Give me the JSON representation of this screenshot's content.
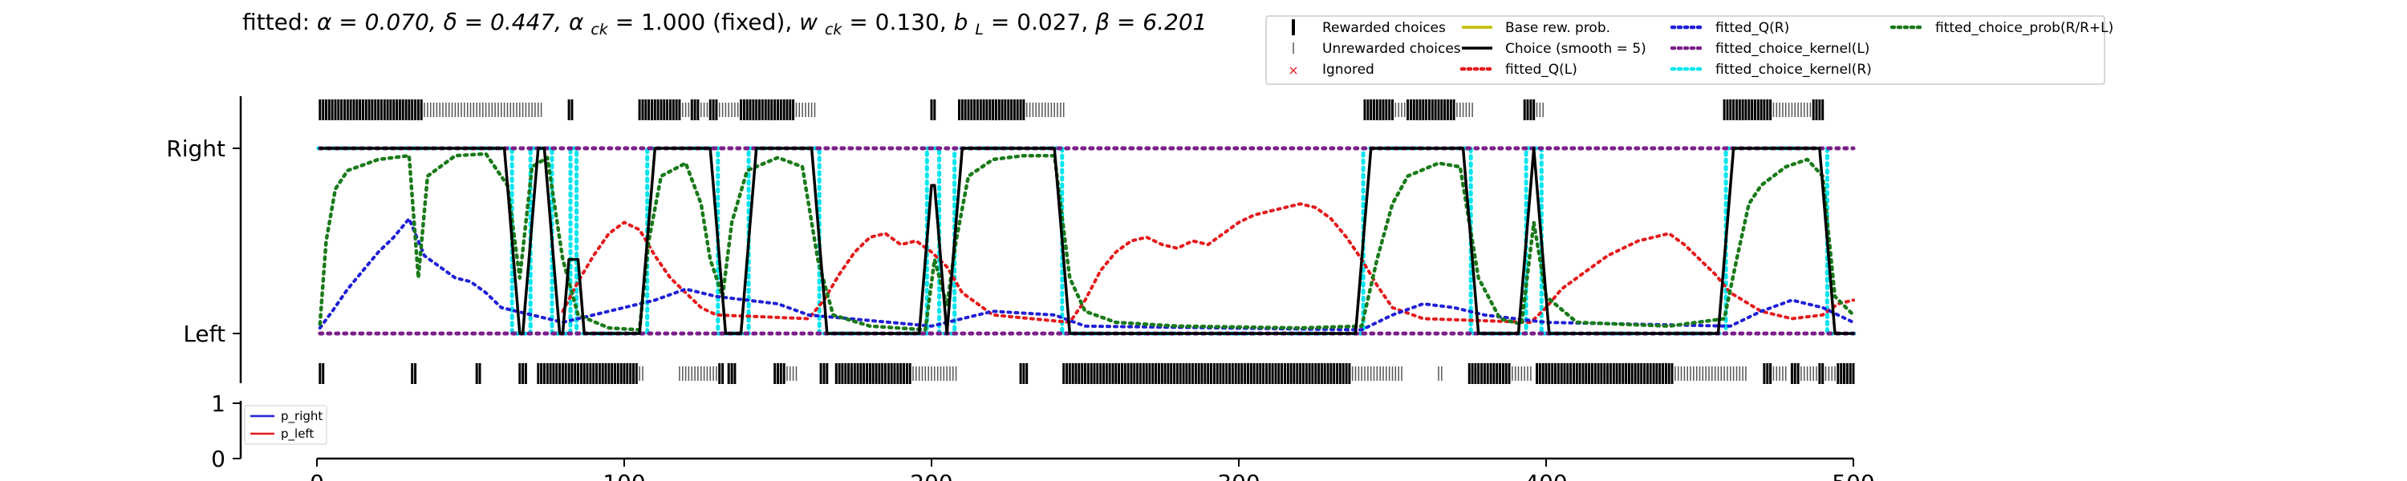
{
  "chart_data": [
    {
      "type": "line",
      "title_parts": {
        "prefix": "fitted: ",
        "alpha": "α = 0.070, ",
        "delta": "δ = 0.447, ",
        "alpha_ck_sym": "α",
        "alpha_ck_sub": "ck",
        "alpha_ck_val": " = 1.000 (fixed), ",
        "w_ck_sym": "w",
        "w_ck_sub": "ck",
        "w_ck_val": " = 0.130, ",
        "b_l_sym": "b",
        "b_l_sub": "L",
        "b_l_val": " = 0.027, ",
        "beta": "β = 6.201"
      },
      "yticks": [
        "Left",
        "Right"
      ],
      "xlim": [
        0,
        500
      ],
      "legend": {
        "placement": "top-right",
        "entries": [
          {
            "label": "Rewarded choices",
            "style": "rewarded",
            "color": "#000000"
          },
          {
            "label": "Unrewarded choices",
            "style": "unrewarded",
            "color": "#555555"
          },
          {
            "label": "Ignored",
            "style": "ignored",
            "color": "#e41a1c"
          },
          {
            "label": "Base rew. prob.",
            "style": "solid",
            "color": "#bfbf00"
          },
          {
            "label": "Choice (smooth = 5)",
            "style": "solid",
            "color": "#000000"
          },
          {
            "label": "fitted_Q(L)",
            "style": "dotted",
            "color": "#e41a1c"
          },
          {
            "label": "fitted_Q(R)",
            "style": "dotted",
            "color": "#1f1fd6"
          },
          {
            "label": "fitted_choice_kernel(L)",
            "style": "dotted",
            "color": "#7b1f8a"
          },
          {
            "label": "fitted_choice_kernel(R)",
            "style": "dotted",
            "color": "#00e5ee"
          },
          {
            "label": "fitted_choice_prob(R/R+L)",
            "style": "dotted",
            "color": "#1a7a1a"
          }
        ]
      },
      "choice_segments": [
        {
          "start": 1,
          "end": 34,
          "side": "R"
        },
        {
          "start": 35,
          "end": 54,
          "side": "R"
        },
        {
          "start": 55,
          "end": 63,
          "side": "R"
        },
        {
          "start": 64,
          "end": 69,
          "side": "L"
        },
        {
          "start": 70,
          "end": 76,
          "side": "R"
        },
        {
          "start": 77,
          "end": 82,
          "side": "L"
        },
        {
          "start": 83,
          "end": 84,
          "side": "R"
        },
        {
          "start": 85,
          "end": 107,
          "side": "L"
        },
        {
          "start": 108,
          "end": 130,
          "side": "R"
        },
        {
          "start": 131,
          "end": 140,
          "side": "L"
        },
        {
          "start": 141,
          "end": 163,
          "side": "R"
        },
        {
          "start": 164,
          "end": 198,
          "side": "L"
        },
        {
          "start": 199,
          "end": 202,
          "side": "R"
        },
        {
          "start": 203,
          "end": 207,
          "side": "L"
        },
        {
          "start": 208,
          "end": 242,
          "side": "R"
        },
        {
          "start": 243,
          "end": 340,
          "side": "L"
        },
        {
          "start": 341,
          "end": 375,
          "side": "R"
        },
        {
          "start": 376,
          "end": 393,
          "side": "L"
        },
        {
          "start": 394,
          "end": 398,
          "side": "R"
        },
        {
          "start": 399,
          "end": 458,
          "side": "L"
        },
        {
          "start": 459,
          "end": 491,
          "side": "R"
        },
        {
          "start": 492,
          "end": 500,
          "side": "L"
        }
      ],
      "q_left_points": [
        [
          80,
          0.12
        ],
        [
          85,
          0.28
        ],
        [
          90,
          0.42
        ],
        [
          95,
          0.54
        ],
        [
          100,
          0.6
        ],
        [
          105,
          0.56
        ],
        [
          110,
          0.42
        ],
        [
          115,
          0.3
        ],
        [
          120,
          0.22
        ],
        [
          125,
          0.14
        ],
        [
          130,
          0.1
        ],
        [
          160,
          0.08
        ],
        [
          165,
          0.18
        ],
        [
          170,
          0.32
        ],
        [
          175,
          0.44
        ],
        [
          180,
          0.52
        ],
        [
          185,
          0.54
        ],
        [
          190,
          0.48
        ],
        [
          195,
          0.5
        ],
        [
          200,
          0.44
        ],
        [
          205,
          0.36
        ],
        [
          210,
          0.22
        ],
        [
          220,
          0.1
        ],
        [
          245,
          0.06
        ],
        [
          250,
          0.18
        ],
        [
          255,
          0.34
        ],
        [
          260,
          0.44
        ],
        [
          265,
          0.5
        ],
        [
          270,
          0.52
        ],
        [
          275,
          0.48
        ],
        [
          280,
          0.46
        ],
        [
          285,
          0.5
        ],
        [
          290,
          0.48
        ],
        [
          295,
          0.54
        ],
        [
          300,
          0.6
        ],
        [
          305,
          0.64
        ],
        [
          310,
          0.66
        ],
        [
          315,
          0.68
        ],
        [
          320,
          0.7
        ],
        [
          325,
          0.68
        ],
        [
          330,
          0.62
        ],
        [
          335,
          0.52
        ],
        [
          340,
          0.4
        ],
        [
          345,
          0.26
        ],
        [
          350,
          0.14
        ],
        [
          360,
          0.08
        ],
        [
          395,
          0.06
        ],
        [
          400,
          0.14
        ],
        [
          405,
          0.24
        ],
        [
          410,
          0.3
        ],
        [
          415,
          0.36
        ],
        [
          420,
          0.42
        ],
        [
          425,
          0.46
        ],
        [
          430,
          0.5
        ],
        [
          435,
          0.52
        ],
        [
          440,
          0.54
        ],
        [
          445,
          0.48
        ],
        [
          450,
          0.4
        ],
        [
          455,
          0.32
        ],
        [
          460,
          0.22
        ],
        [
          470,
          0.12
        ],
        [
          480,
          0.08
        ],
        [
          490,
          0.1
        ],
        [
          495,
          0.16
        ],
        [
          500,
          0.18
        ]
      ],
      "q_right_points": [
        [
          1,
          0.03
        ],
        [
          5,
          0.12
        ],
        [
          10,
          0.24
        ],
        [
          15,
          0.34
        ],
        [
          20,
          0.44
        ],
        [
          25,
          0.52
        ],
        [
          30,
          0.62
        ],
        [
          35,
          0.42
        ],
        [
          40,
          0.36
        ],
        [
          45,
          0.3
        ],
        [
          50,
          0.28
        ],
        [
          55,
          0.22
        ],
        [
          60,
          0.14
        ],
        [
          70,
          0.1
        ],
        [
          80,
          0.06
        ],
        [
          110,
          0.18
        ],
        [
          120,
          0.24
        ],
        [
          130,
          0.2
        ],
        [
          140,
          0.18
        ],
        [
          150,
          0.16
        ],
        [
          160,
          0.1
        ],
        [
          200,
          0.04
        ],
        [
          210,
          0.08
        ],
        [
          220,
          0.12
        ],
        [
          240,
          0.1
        ],
        [
          250,
          0.04
        ],
        [
          340,
          0.02
        ],
        [
          350,
          0.1
        ],
        [
          360,
          0.16
        ],
        [
          370,
          0.14
        ],
        [
          380,
          0.1
        ],
        [
          400,
          0.06
        ],
        [
          460,
          0.04
        ],
        [
          470,
          0.12
        ],
        [
          480,
          0.18
        ],
        [
          490,
          0.14
        ],
        [
          500,
          0.06
        ]
      ],
      "kernel_left_level": 1.0,
      "prob_points": [
        [
          1,
          0.05
        ],
        [
          3,
          0.5
        ],
        [
          6,
          0.78
        ],
        [
          10,
          0.88
        ],
        [
          20,
          0.94
        ],
        [
          30,
          0.96
        ],
        [
          33,
          0.3
        ],
        [
          36,
          0.85
        ],
        [
          45,
          0.96
        ],
        [
          55,
          0.97
        ],
        [
          62,
          0.8
        ],
        [
          66,
          0.3
        ],
        [
          70,
          0.9
        ],
        [
          75,
          0.95
        ],
        [
          80,
          0.4
        ],
        [
          85,
          0.1
        ],
        [
          95,
          0.03
        ],
        [
          105,
          0.02
        ],
        [
          108,
          0.5
        ],
        [
          112,
          0.85
        ],
        [
          120,
          0.92
        ],
        [
          125,
          0.7
        ],
        [
          128,
          0.4
        ],
        [
          132,
          0.2
        ],
        [
          135,
          0.6
        ],
        [
          140,
          0.88
        ],
        [
          150,
          0.95
        ],
        [
          158,
          0.9
        ],
        [
          163,
          0.4
        ],
        [
          168,
          0.1
        ],
        [
          180,
          0.04
        ],
        [
          198,
          0.02
        ],
        [
          201,
          0.4
        ],
        [
          205,
          0.15
        ],
        [
          208,
          0.5
        ],
        [
          212,
          0.85
        ],
        [
          220,
          0.94
        ],
        [
          230,
          0.96
        ],
        [
          240,
          0.96
        ],
        [
          245,
          0.3
        ],
        [
          250,
          0.12
        ],
        [
          260,
          0.06
        ],
        [
          280,
          0.04
        ],
        [
          320,
          0.03
        ],
        [
          340,
          0.04
        ],
        [
          345,
          0.4
        ],
        [
          350,
          0.7
        ],
        [
          355,
          0.85
        ],
        [
          365,
          0.92
        ],
        [
          372,
          0.9
        ],
        [
          378,
          0.3
        ],
        [
          385,
          0.08
        ],
        [
          392,
          0.05
        ],
        [
          396,
          0.6
        ],
        [
          400,
          0.2
        ],
        [
          410,
          0.06
        ],
        [
          440,
          0.04
        ],
        [
          458,
          0.08
        ],
        [
          462,
          0.4
        ],
        [
          466,
          0.7
        ],
        [
          470,
          0.8
        ],
        [
          478,
          0.9
        ],
        [
          485,
          0.94
        ],
        [
          490,
          0.85
        ],
        [
          494,
          0.2
        ],
        [
          500,
          0.1
        ]
      ],
      "rewarded_ticks_top": [
        [
          1,
          34
        ],
        [
          82,
          83
        ],
        [
          105,
          118
        ],
        [
          122,
          124
        ],
        [
          128,
          130
        ],
        [
          138,
          155
        ],
        [
          200,
          201
        ],
        [
          209,
          230
        ],
        [
          341,
          350
        ],
        [
          355,
          370
        ],
        [
          393,
          396
        ],
        [
          458,
          473
        ],
        [
          487,
          490
        ]
      ],
      "unrewarded_ticks_top": [
        [
          35,
          73
        ],
        [
          118,
          122
        ],
        [
          124,
          128
        ],
        [
          130,
          138
        ],
        [
          156,
          162
        ],
        [
          230,
          243
        ],
        [
          350,
          355
        ],
        [
          370,
          376
        ],
        [
          396,
          399
        ],
        [
          473,
          486
        ]
      ],
      "rewarded_ticks_bottom": [
        [
          1,
          2
        ],
        [
          31,
          32
        ],
        [
          52,
          53
        ],
        [
          66,
          68
        ],
        [
          72,
          104
        ],
        [
          131,
          132
        ],
        [
          134,
          136
        ],
        [
          149,
          152
        ],
        [
          164,
          166
        ],
        [
          169,
          193
        ],
        [
          229,
          231
        ],
        [
          243,
          336
        ],
        [
          375,
          388
        ],
        [
          397,
          441
        ],
        [
          471,
          473
        ],
        [
          480,
          482
        ],
        [
          489,
          490
        ],
        [
          495,
          500
        ]
      ],
      "unrewarded_ticks_bottom": [
        [
          104,
          106
        ],
        [
          118,
          130
        ],
        [
          152,
          156
        ],
        [
          193,
          208
        ],
        [
          336,
          353
        ],
        [
          365,
          366
        ],
        [
          388,
          395
        ],
        [
          441,
          465
        ],
        [
          473,
          478
        ],
        [
          482,
          488
        ],
        [
          490,
          494
        ]
      ]
    },
    {
      "type": "line",
      "yticks": [
        "0",
        "1"
      ],
      "xticks": [
        "0",
        "100",
        "200",
        "300",
        "400",
        "500"
      ],
      "legend": {
        "placement": "top-left",
        "entries": [
          {
            "label": "p_right",
            "color": "#1f1fd6"
          },
          {
            "label": "p_left",
            "color": "#e41a1c"
          }
        ]
      }
    }
  ]
}
